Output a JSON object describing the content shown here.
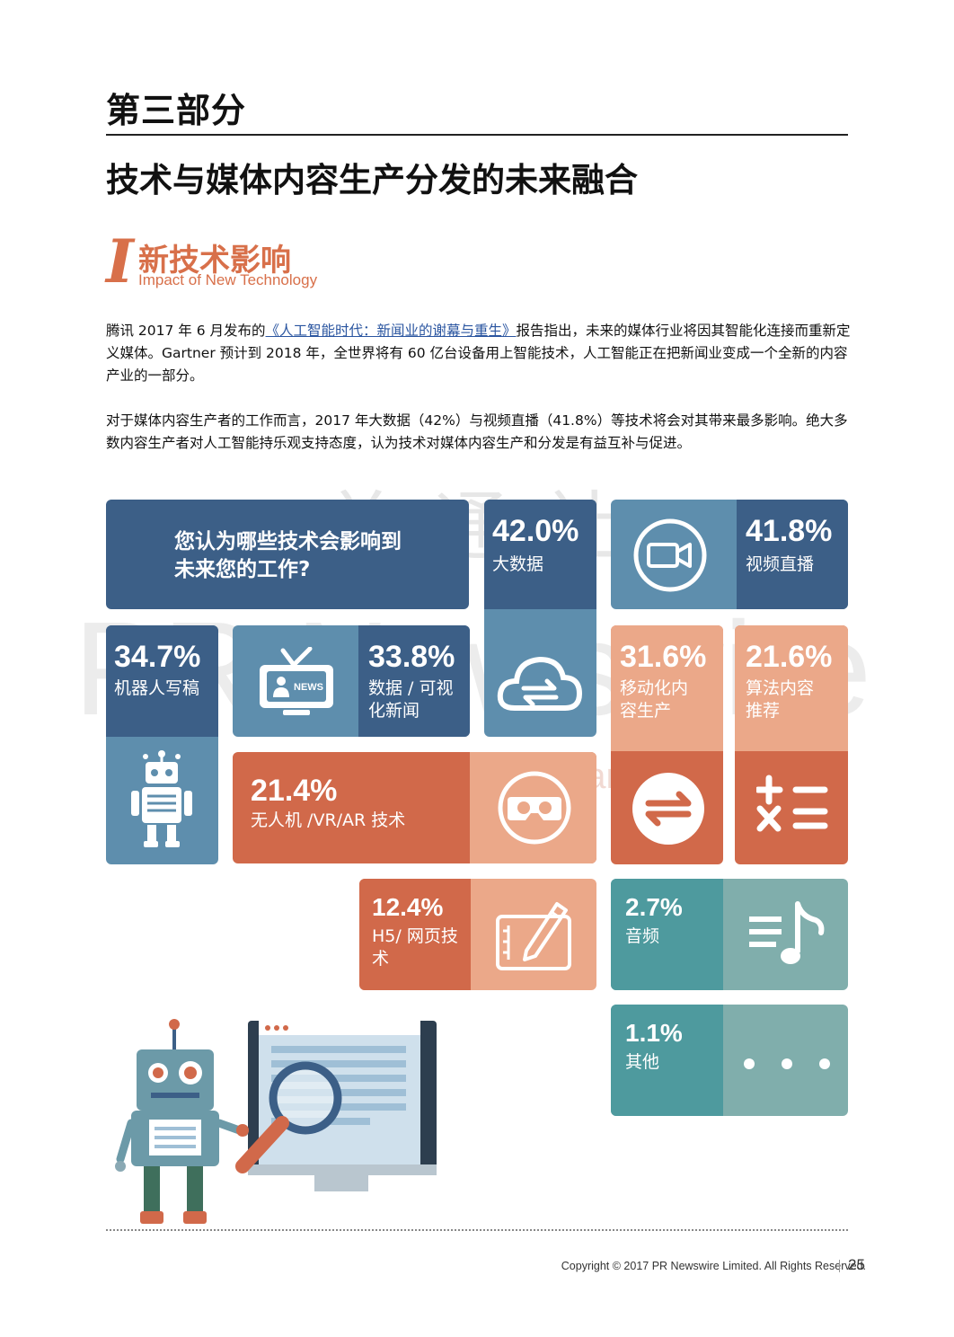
{
  "header": {
    "part": "第三部分",
    "title": "技术与媒体内容生产分发的未来融合"
  },
  "section": {
    "letter": "I",
    "title_cn": "新技术影响",
    "title_en": "Impact of New Technology"
  },
  "paragraphs": {
    "p1_pre": "腾讯 2017 年 6 月发布的",
    "p1_link": "《人工智能时代：新闻业的谢幕与重生》",
    "p1_post": "报告指出，未来的媒体行业将因其智能化连接而重新定义媒体。Gartner 预计到 2018 年，全世界将有 60 亿台设备用上智能技术，人工智能正在把新闻业变成一个全新的内容产业的一部分。",
    "p2": "对于媒体内容生产者的工作而言，2017 年大数据（42%）与视频直播（41.8%）等技术将会对其带来最多影响。绝大多数内容生产者对人工智能持乐观支持态度，认为技术对媒体内容生产和分发是有益互补与促进。"
  },
  "infographic": {
    "question": "您认为哪些技术会影响到未来您的工作?",
    "items": [
      {
        "pct": "42.0%",
        "label": "大数据"
      },
      {
        "pct": "41.8%",
        "label": "视频直播"
      },
      {
        "pct": "34.7%",
        "label": "机器人写稿"
      },
      {
        "pct": "33.8%",
        "label": "数据 / 可视化新闻"
      },
      {
        "pct": "31.6%",
        "label": "移动化内容生产"
      },
      {
        "pct": "21.6%",
        "label": "算法内容推荐"
      },
      {
        "pct": "21.4%",
        "label": "无人机 /VR/AR 技术"
      },
      {
        "pct": "12.4%",
        "label": "H5/ 网页技术"
      },
      {
        "pct": "2.7%",
        "label": "音频"
      },
      {
        "pct": "1.1%",
        "label": "其他"
      }
    ],
    "icon_labels": {
      "news": "NEWS"
    }
  },
  "watermark": {
    "line1": "美通社",
    "line2": "PR Newswire",
    "line3": "A CISION company"
  },
  "footer": {
    "copyright": "Copyright © 2017 PR Newswire Limited. All Rights Reserved.",
    "page": "25"
  },
  "colors": {
    "navy": "#3c5f87",
    "steel": "#5e8ead",
    "orange_light": "#eba889",
    "orange_dark": "#d1694a",
    "teal": "#4e9a9e",
    "teal_light": "#80aeac"
  }
}
